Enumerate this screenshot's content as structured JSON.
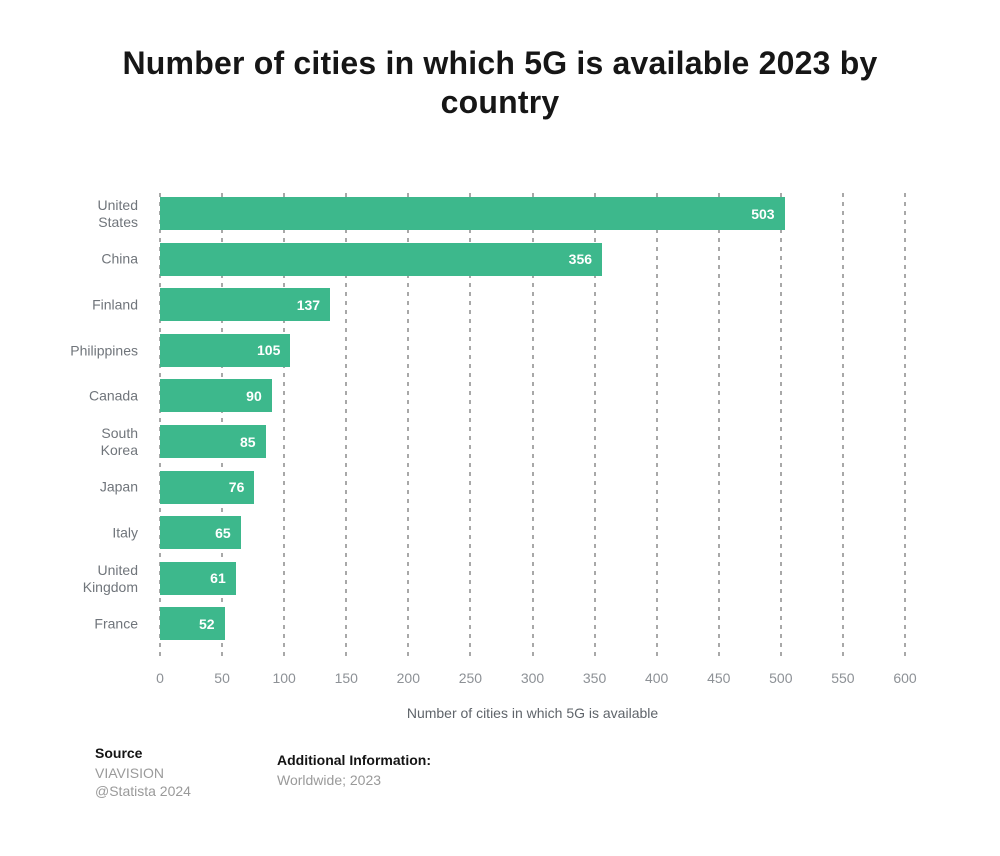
{
  "title": "Number of cities in which 5G is available 2023 by country",
  "chart_data": {
    "type": "bar",
    "orientation": "horizontal",
    "categories": [
      "United States",
      "China",
      "Finland",
      "Philippines",
      "Canada",
      "South Korea",
      "Japan",
      "Italy",
      "United Kingdom",
      "France"
    ],
    "values": [
      503,
      356,
      137,
      105,
      90,
      85,
      76,
      65,
      61,
      52
    ],
    "title": "Number of cities in which 5G is available 2023 by country",
    "xlabel": "Number of cities in which 5G is available",
    "ylabel": "",
    "xlim": [
      0,
      600
    ],
    "xticks": [
      0,
      50,
      100,
      150,
      200,
      250,
      300,
      350,
      400,
      450,
      500,
      550,
      600
    ],
    "grid": "vertical-dashed",
    "legend": "none",
    "bar_color": "#3db88c",
    "value_label_color": "#ffffff"
  },
  "footer": {
    "source_label": "Source",
    "source_lines": [
      "VIAVISION",
      "@Statista 2024"
    ],
    "additional_label": "Additional Information:",
    "additional_value": "Worldwide; 2023"
  }
}
